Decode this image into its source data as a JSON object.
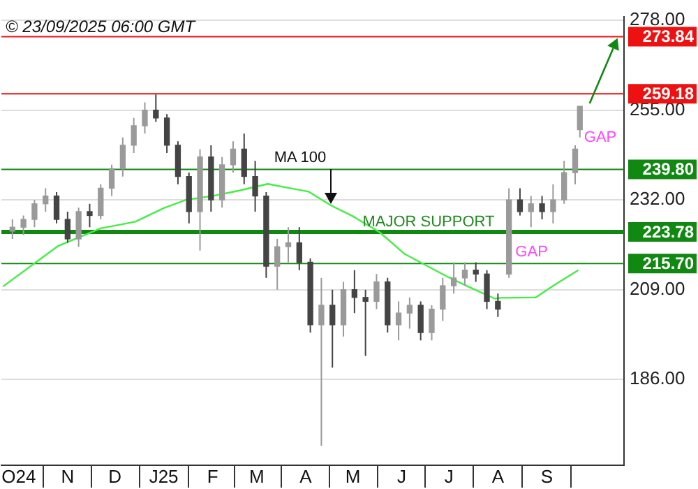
{
  "chart_data": {
    "type": "candlestick",
    "title": "© 23/09/2025 06:00 GMT",
    "colors": [
      "#9a9a9a",
      "#9a9a9a",
      "#9a9a9a",
      "#9a9a9a",
      "#444444",
      "#444444",
      "#9a9a9a",
      "#444444",
      "#9a9a9a",
      "#9a9a9a",
      "#9a9a9a",
      "#9a9a9a",
      "#9a9a9a",
      "#444444",
      "#444444",
      "#444444",
      "#444444",
      "#9a9a9a",
      "#444444",
      "#9a9a9a",
      "#9a9a9a",
      "#444444",
      "#444444",
      "#444444",
      "#9a9a9a",
      "#9a9a9a",
      "#444444",
      "#444444",
      "#9a9a9a",
      "#444444",
      "#9a9a9a",
      "#444444",
      "#444444",
      "#9a9a9a",
      "#444444",
      "#9a9a9a",
      "#9a9a9a",
      "#444444",
      "#9a9a9a",
      "#9a9a9a",
      "#9a9a9a",
      "#9a9a9a",
      "#444444",
      "#444444",
      "#444444",
      "#9a9a9a",
      "#444444",
      "#9a9a9a",
      "#444444",
      "#9a9a9a",
      "#9a9a9a",
      "#9a9a9a",
      "#9a9a9a"
    ],
    "x": [
      "2024-09-27",
      "2024-10-04",
      "2024-10-11",
      "2024-10-18",
      "2024-10-25",
      "2024-11-01",
      "2024-11-08",
      "2024-11-15",
      "2024-11-22",
      "2024-11-29",
      "2024-12-06",
      "2024-12-13",
      "2024-12-20",
      "2024-12-27",
      "2025-01-03",
      "2025-01-10",
      "2025-01-17",
      "2025-01-24",
      "2025-01-31",
      "2025-02-07",
      "2025-02-14",
      "2025-02-21",
      "2025-02-28",
      "2025-03-07",
      "2025-03-14",
      "2025-03-21",
      "2025-03-28",
      "2025-04-04",
      "2025-04-11",
      "2025-04-18",
      "2025-04-25",
      "2025-05-02",
      "2025-05-09",
      "2025-05-16",
      "2025-05-23",
      "2025-05-30",
      "2025-06-06",
      "2025-06-13",
      "2025-06-20",
      "2025-06-27",
      "2025-07-04",
      "2025-07-11",
      "2025-07-18",
      "2025-07-25",
      "2025-08-01",
      "2025-08-08",
      "2025-08-15",
      "2025-08-22",
      "2025-08-29",
      "2025-09-05",
      "2025-09-12",
      "2025-09-19",
      "2025-09-22"
    ],
    "ohlc": [
      [
        224,
        227,
        222,
        225
      ],
      [
        225,
        228,
        223,
        227
      ],
      [
        227,
        232,
        225,
        231
      ],
      [
        231,
        235,
        229,
        233
      ],
      [
        233,
        234,
        226,
        227
      ],
      [
        227,
        229,
        221,
        222
      ],
      [
        222,
        230,
        220,
        229
      ],
      [
        229,
        231,
        225,
        228
      ],
      [
        228,
        236,
        227,
        235
      ],
      [
        235,
        241,
        233,
        240
      ],
      [
        240,
        248,
        238,
        246
      ],
      [
        246,
        253,
        244,
        251
      ],
      [
        251,
        257,
        249,
        255
      ],
      [
        255,
        259,
        252,
        253
      ],
      [
        253,
        254,
        244,
        246
      ],
      [
        246,
        247,
        236,
        238
      ],
      [
        238,
        239,
        226,
        229
      ],
      [
        229,
        245,
        219,
        243
      ],
      [
        243,
        246,
        229,
        232
      ],
      [
        232,
        243,
        230,
        241
      ],
      [
        241,
        247,
        239,
        245
      ],
      [
        245,
        249,
        236,
        238
      ],
      [
        238,
        242,
        229,
        233
      ],
      [
        233,
        234,
        212,
        215
      ],
      [
        215,
        222,
        209,
        220
      ],
      [
        220,
        225,
        216,
        221
      ],
      [
        221,
        225,
        214,
        216
      ],
      [
        216,
        217,
        198,
        200
      ],
      [
        200,
        212,
        169,
        205
      ],
      [
        205,
        209,
        189,
        200
      ],
      [
        200,
        211,
        197,
        209
      ],
      [
        209,
        214,
        203,
        207
      ],
      [
        207,
        209,
        192,
        206
      ],
      [
        206,
        213,
        204,
        211
      ],
      [
        211,
        212,
        198,
        200
      ],
      [
        200,
        206,
        196,
        203
      ],
      [
        203,
        207,
        199,
        205
      ],
      [
        205,
        206,
        196,
        198
      ],
      [
        198,
        205,
        196,
        204
      ],
      [
        204,
        212,
        201,
        210
      ],
      [
        210,
        216,
        208,
        212
      ],
      [
        212,
        216,
        210,
        214
      ],
      [
        214,
        216,
        211,
        213
      ],
      [
        213,
        214,
        204,
        206
      ],
      [
        206,
        208,
        202,
        204
      ],
      [
        213,
        235,
        212,
        232
      ],
      [
        232,
        235,
        228,
        229
      ],
      [
        229,
        233,
        225,
        231
      ],
      [
        231,
        233,
        227,
        229
      ],
      [
        229,
        236,
        226,
        232
      ],
      [
        232,
        242,
        231,
        239
      ],
      [
        239,
        246,
        236,
        245
      ],
      [
        250,
        256,
        248,
        256
      ]
    ],
    "series": [
      {
        "type": "line",
        "color": "#44ee44",
        "x": [
          "2024-09-21",
          "2024-10-26",
          "2024-11-22",
          "2024-12-14",
          "2025-01-01",
          "2025-01-15",
          "2025-02-01",
          "2025-02-18",
          "2025-03-08",
          "2025-03-21",
          "2025-04-03",
          "2025-04-17",
          "2025-05-01",
          "2025-05-18",
          "2025-06-03",
          "2025-06-30",
          "2025-07-13",
          "2025-07-30",
          "2025-08-03",
          "2025-08-25",
          "2025-09-07",
          "2025-09-21"
        ],
        "values": [
          209.8,
          220.2,
          224.7,
          226.4,
          229.9,
          232,
          233,
          234.4,
          236.1,
          235.1,
          234.1,
          230.6,
          227.8,
          223.7,
          218.1,
          212.3,
          209.8,
          206.7,
          206.9,
          207,
          210.5,
          214
        ]
      }
    ],
    "xlim": [
      "2024-09-20",
      "2025-10-20"
    ],
    "xticks": [
      {
        "value": "2024-10-01",
        "label": "O24"
      },
      {
        "value": "2024-11-01",
        "label": "N"
      },
      {
        "value": "2024-12-01",
        "label": "D"
      },
      {
        "value": "2025-01-01",
        "label": "J25"
      },
      {
        "value": "2025-02-01",
        "label": "F"
      },
      {
        "value": "2025-03-01",
        "label": "M"
      },
      {
        "value": "2025-04-01",
        "label": "A"
      },
      {
        "value": "2025-05-01",
        "label": "M"
      },
      {
        "value": "2025-06-01",
        "label": "J"
      },
      {
        "value": "2025-07-01",
        "label": "J"
      },
      {
        "value": "2025-08-01",
        "label": "A"
      },
      {
        "value": "2025-09-01",
        "label": "S"
      }
    ],
    "ylim": [
      164,
      279
    ],
    "yticks": [
      {
        "value": 186,
        "label": "186.00"
      },
      {
        "value": 209,
        "label": "209.00"
      },
      {
        "value": 232,
        "label": "232.00"
      },
      {
        "value": 255,
        "label": "255.00"
      },
      {
        "value": 278,
        "label": "278.00"
      }
    ],
    "grid": "y",
    "marker": "none",
    "line_style": "solid",
    "ref_lines": [
      {
        "axis": "y",
        "value": 273.84,
        "label": "273.84",
        "color": "#ee1111"
      },
      {
        "axis": "y",
        "value": 259.18,
        "label": "259.18",
        "color": "#ee1111"
      },
      {
        "axis": "y",
        "value": 239.8,
        "label": "239.80",
        "color": "#118811"
      },
      {
        "axis": "y",
        "value": 223.78,
        "label": "223.78",
        "color": "#118811"
      },
      {
        "axis": "y",
        "value": 215.7,
        "label": "215.70",
        "color": "#118811"
      }
    ],
    "annotations": [
      {
        "text": "MA 100",
        "x": "2025-04-17",
        "y": 230.6
      },
      {
        "text": "MAJOR SUPPORT",
        "x": "2025-06-18",
        "y": 223.78
      },
      {
        "text": "GAP",
        "x": "2025-09-22",
        "y": 248
      },
      {
        "text": "GAP",
        "x": "2025-08-05",
        "y": 216.4
      }
    ]
  }
}
